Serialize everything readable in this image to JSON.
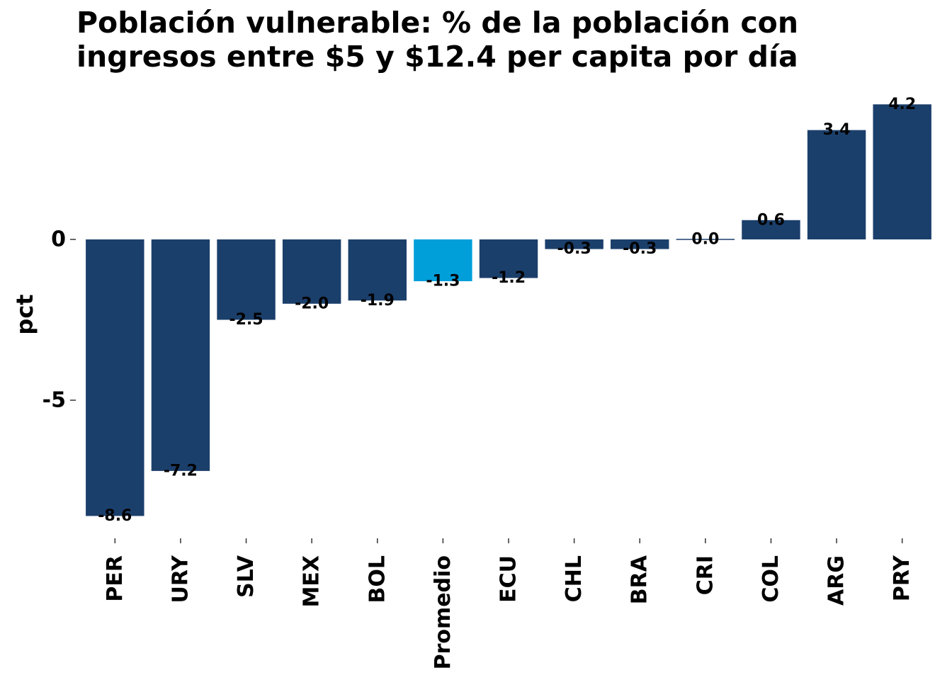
{
  "chart_data": {
    "type": "bar",
    "title": [
      "Población vulnerable: % de la población con",
      "ingresos entre $5 y $12.4 per capita por día"
    ],
    "xlabel": "",
    "ylabel": "pct",
    "ylim": [
      -9.3,
      4.6
    ],
    "yticks": [
      0,
      -5
    ],
    "grid": false,
    "categories": [
      "PER",
      "URY",
      "SLV",
      "MEX",
      "BOL",
      "Promedio",
      "ECU",
      "CHL",
      "BRA",
      "CRI",
      "COL",
      "ARG",
      "PRY"
    ],
    "values": [
      -8.6,
      -7.2,
      -2.5,
      -2.0,
      -1.9,
      -1.3,
      -1.2,
      -0.3,
      -0.3,
      0.0,
      0.6,
      3.4,
      4.2
    ],
    "value_labels": [
      "-8.6",
      "-7.2",
      "-2.5",
      "-2.0",
      "-1.9",
      "-1.3",
      "-1.2",
      "-0.3",
      "-0.3",
      "0.0",
      "0.6",
      "3.4",
      "4.2"
    ],
    "highlight_category": "Promedio",
    "colors": {
      "bar": "#1b3f6b",
      "highlight": "#009fda",
      "text": "#000000",
      "tick": "#333333"
    }
  }
}
